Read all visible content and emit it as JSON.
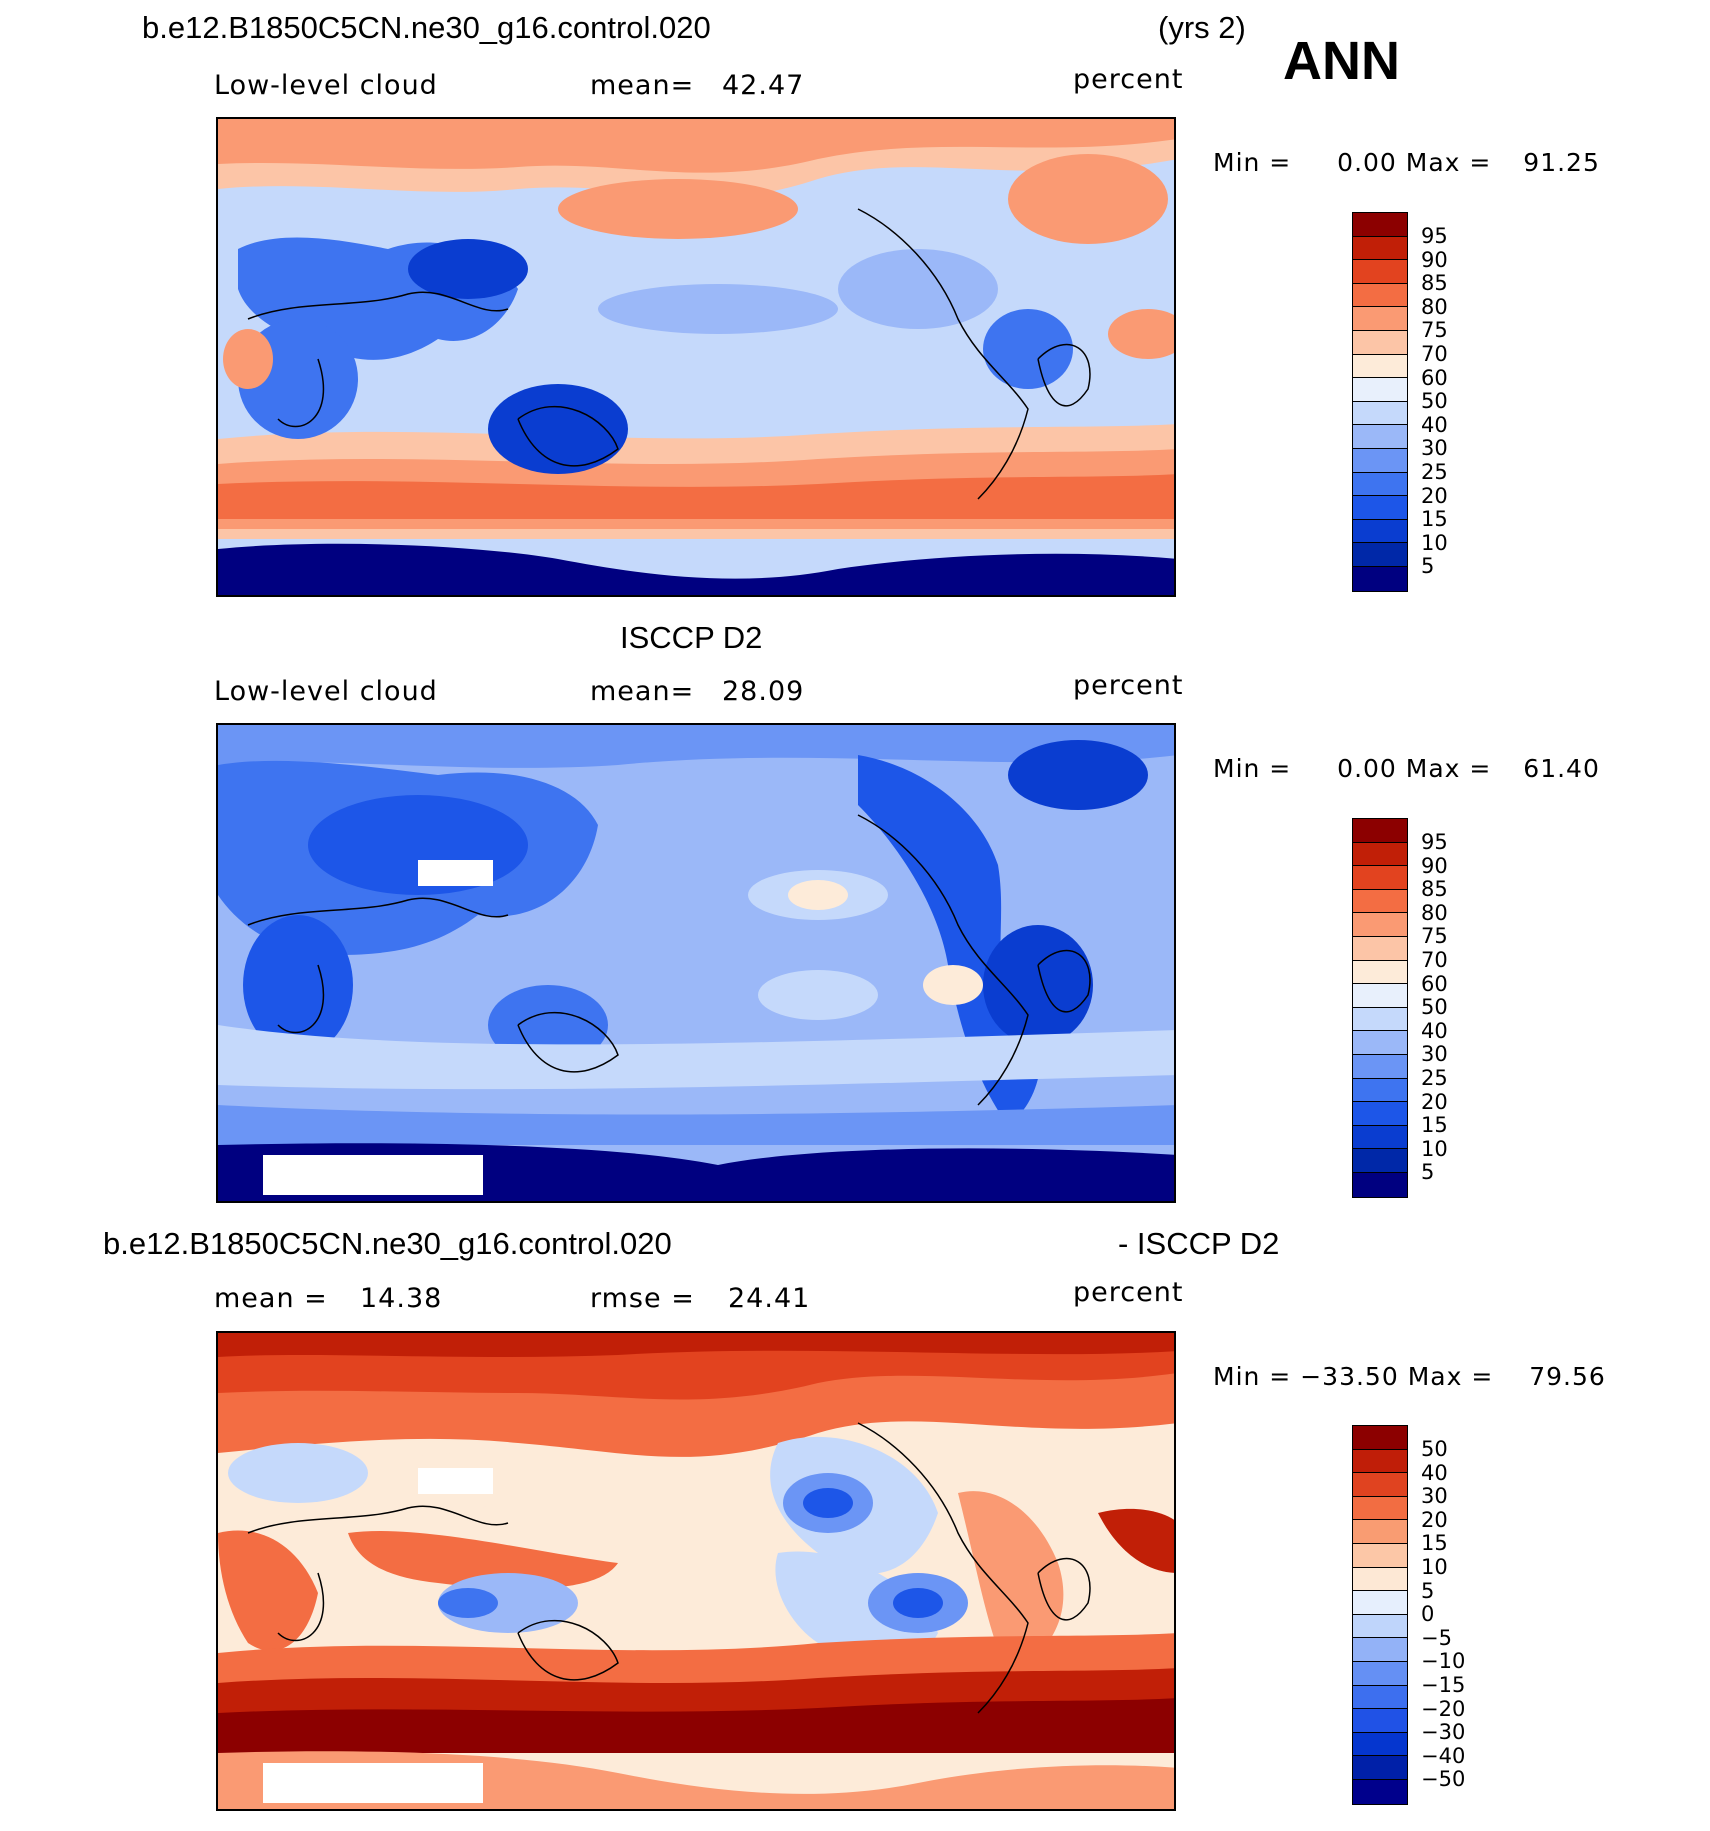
{
  "run_title": "b.e12.B1850C5CN.ne30_g16.control.020",
  "years": "(yrs 2)",
  "season": "ANN",
  "units": "percent",
  "colors": {
    "abs_scale": [
      "#000080",
      "#0028a8",
      "#0a3dd0",
      "#1d56e8",
      "#3e74f0",
      "#6b95f5",
      "#9bb8f8",
      "#c5d9fb",
      "#e8f0fc",
      "#fdebd9",
      "#fcc5a7",
      "#fa9a73",
      "#f36d43",
      "#e2431f",
      "#c11f07",
      "#8c0000"
    ],
    "diff_scale": [
      "#00008c",
      "#0020a8",
      "#0536cf",
      "#2052e6",
      "#3d6fef",
      "#6590f4",
      "#93b2f7",
      "#bfd5fb",
      "#e6effd",
      "#fde8d5",
      "#fcc7a7",
      "#f99c72",
      "#f26d42",
      "#e04320",
      "#c01e08",
      "#8c0000"
    ]
  },
  "chart_data": [
    {
      "type": "heatmap",
      "dataset": "b.e12.B1850C5CN.ne30_g16.control.020",
      "variable": "Low-level cloud",
      "mean_label": "mean=",
      "mean_value": "42.47",
      "units": "percent",
      "min_label": "Min =",
      "min_value": "0.00",
      "max_label": "Max =",
      "max_value": "91.25",
      "colorbar_levels": [
        "95",
        "90",
        "85",
        "80",
        "75",
        "70",
        "60",
        "50",
        "40",
        "30",
        "25",
        "20",
        "15",
        "10",
        "5"
      ]
    },
    {
      "type": "heatmap",
      "dataset": "ISCCP D2",
      "variable": "Low-level cloud",
      "mean_label": "mean=",
      "mean_value": "28.09",
      "units": "percent",
      "min_label": "Min =",
      "min_value": "0.00",
      "max_label": "Max =",
      "max_value": "61.40",
      "colorbar_levels": [
        "95",
        "90",
        "85",
        "80",
        "75",
        "70",
        "60",
        "50",
        "40",
        "30",
        "25",
        "20",
        "15",
        "10",
        "5"
      ]
    },
    {
      "type": "heatmap",
      "dataset_left": "b.e12.B1850C5CN.ne30_g16.control.020",
      "dataset_right": "- ISCCP D2",
      "mean_label": "mean =",
      "mean_value": "14.38",
      "rmse_label": "rmse =",
      "rmse_value": "24.41",
      "units": "percent",
      "min_label": "Min =",
      "min_value": "−33.50",
      "max_label": "Max =",
      "max_value": "79.56",
      "colorbar_levels": [
        "50",
        "40",
        "30",
        "20",
        "15",
        "10",
        "5",
        "0",
        "−5",
        "−10",
        "−15",
        "−20",
        "−30",
        "−40",
        "−50"
      ]
    }
  ]
}
